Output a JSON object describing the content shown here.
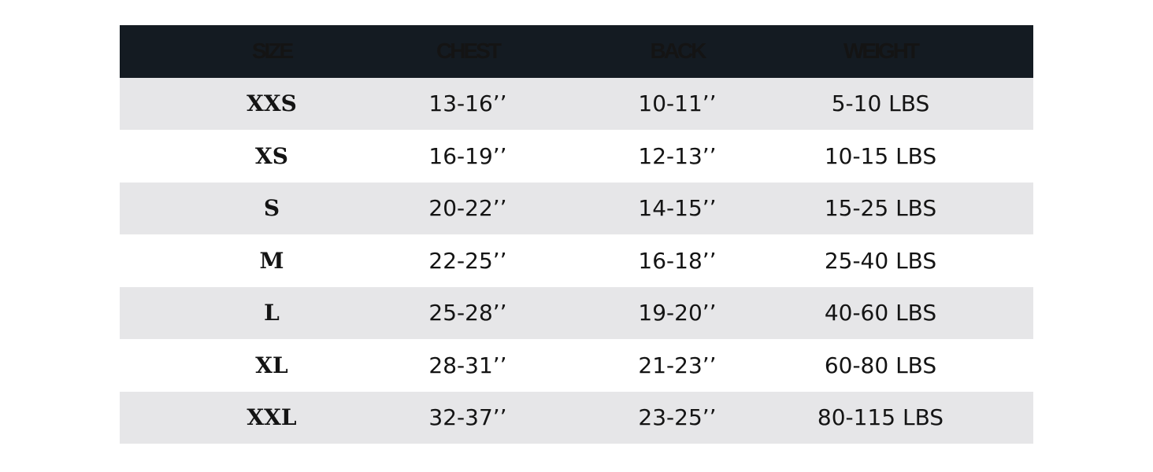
{
  "table": {
    "header": [
      "SIZE",
      "CHEST",
      "BACK",
      "WEIGHT"
    ],
    "rows": [
      [
        "XXS",
        "13-16’’",
        "10-11’’",
        "5-10 LBS"
      ],
      [
        "XS",
        "16-19’’",
        "12-13’’",
        "10-15 LBS"
      ],
      [
        "S",
        "20-22’’",
        "14-15’’",
        "15-25 LBS"
      ],
      [
        "M",
        "22-25’’",
        "16-18’’",
        "25-40 LBS"
      ],
      [
        "L",
        "25-28’’",
        "19-20’’",
        "40-60 LBS"
      ],
      [
        "XL",
        "28-31’’",
        "21-23’’",
        "60-80 LBS"
      ],
      [
        "XXL",
        "32-37’’",
        "23-25’’",
        "80-115 LBS"
      ]
    ]
  }
}
